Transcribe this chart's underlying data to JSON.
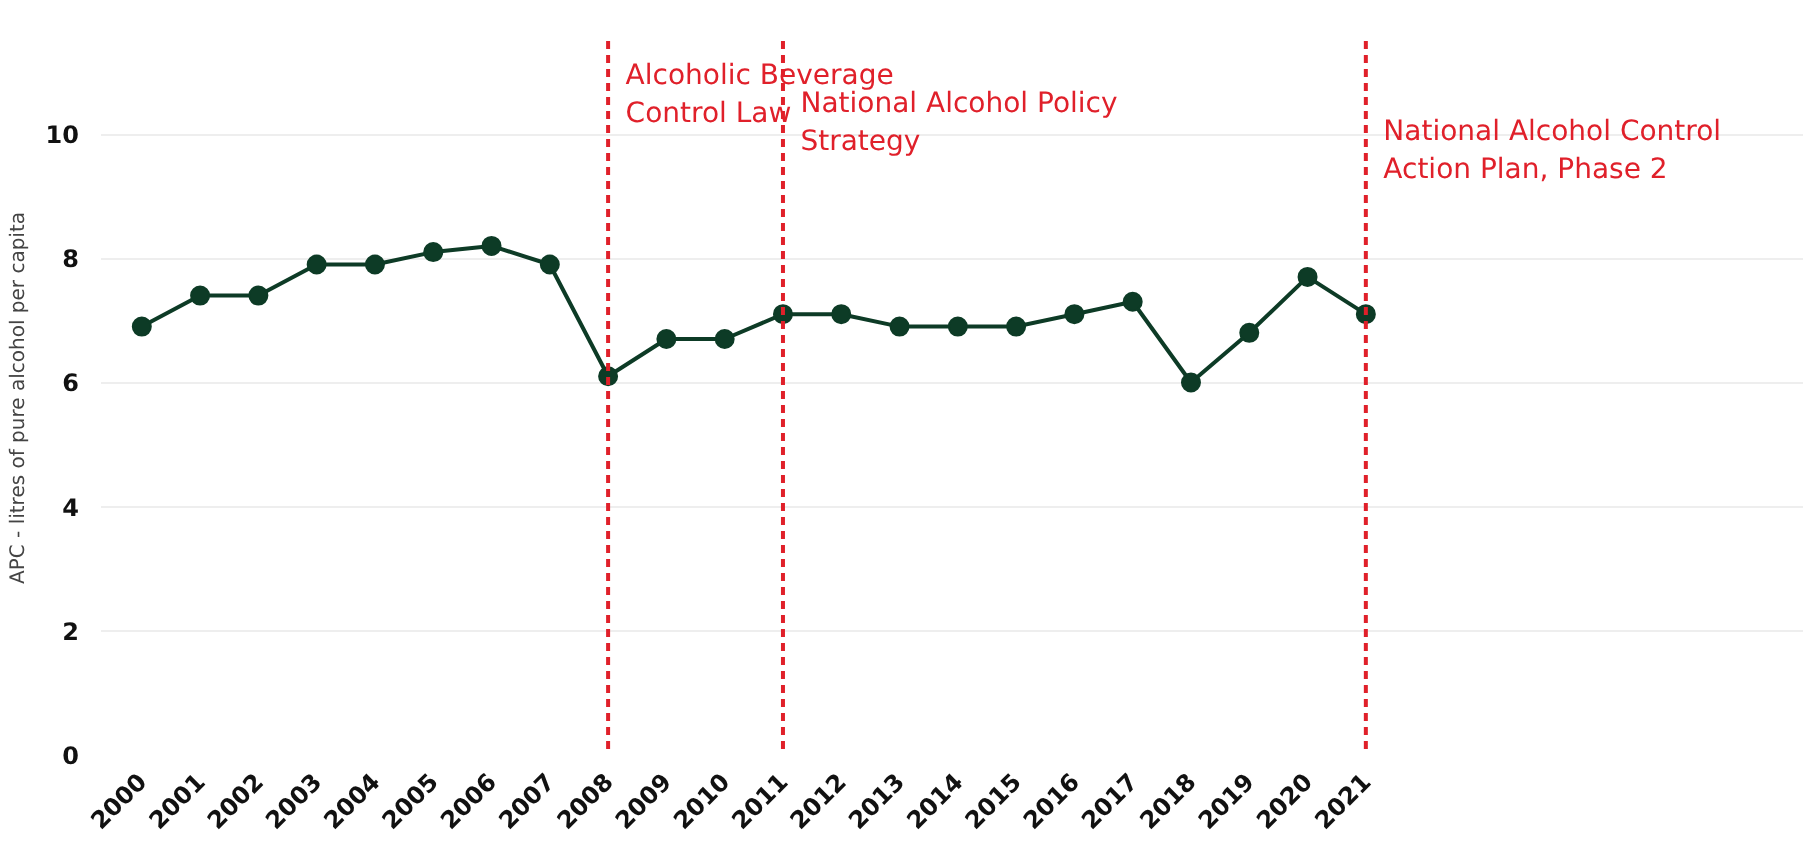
{
  "chart_data": {
    "type": "line",
    "ylabel": "APC - litres of pure alcohol per capita",
    "categories": [
      "2000",
      "2001",
      "2002",
      "2003",
      "2004",
      "2005",
      "2006",
      "2007",
      "2008",
      "2009",
      "2010",
      "2011",
      "2012",
      "2013",
      "2014",
      "2015",
      "2016",
      "2017",
      "2018",
      "2019",
      "2020",
      "2021"
    ],
    "series": [
      {
        "color": "#0d3b26",
        "values": [
          6.9,
          7.4,
          7.4,
          7.9,
          7.9,
          8.1,
          8.2,
          7.9,
          6.1,
          6.7,
          6.7,
          7.1,
          7.1,
          6.9,
          6.9,
          6.9,
          7.1,
          7.3,
          6.0,
          6.8,
          7.7,
          7.1
        ]
      }
    ],
    "ylim": [
      0,
      11.5
    ],
    "yticks": [
      0,
      2,
      4,
      6,
      8,
      10
    ],
    "grid": "y",
    "marker": "circle",
    "line_style": "solid",
    "ref_lines": [
      {
        "axis": "x",
        "value": "2008",
        "label": "Alcoholic Beverage Control Law",
        "color": "#e0202a",
        "line_style": "dashed"
      },
      {
        "axis": "x",
        "value": "2011",
        "label": "National Alcohol Policy Strategy",
        "color": "#e0202a",
        "line_style": "dashed"
      },
      {
        "axis": "x",
        "value": "2021",
        "label": "National Alcohol Control Action Plan, Phase 2",
        "color": "#e0202a",
        "line_style": "dashed"
      }
    ]
  }
}
